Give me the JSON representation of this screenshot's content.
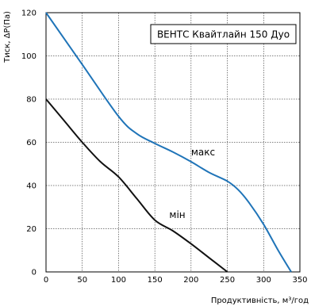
{
  "chart_data": {
    "type": "line",
    "title": "",
    "legend_box": "ВЕНТС Квайтлайн 150 Дуо",
    "legend_placement": "top-right",
    "xlabel": "Продуктивність, м³/год",
    "ylabel": "Тиск, ΔP(Па)",
    "xlim": [
      0,
      350
    ],
    "ylim": [
      0,
      120
    ],
    "xticks": [
      0,
      50,
      100,
      150,
      200,
      250,
      300,
      350
    ],
    "yticks": [
      0,
      20,
      40,
      60,
      80,
      100,
      120
    ],
    "grid": true,
    "series": [
      {
        "name": "макс",
        "color": "#1f74b8",
        "points": [
          [
            0,
            120
          ],
          [
            50,
            96
          ],
          [
            100,
            72
          ],
          [
            125,
            64
          ],
          [
            150,
            59.5
          ],
          [
            175,
            55.5
          ],
          [
            200,
            51
          ],
          [
            225,
            46
          ],
          [
            250,
            42
          ],
          [
            265,
            38
          ],
          [
            280,
            32
          ],
          [
            300,
            22
          ],
          [
            320,
            10
          ],
          [
            338,
            0
          ]
        ]
      },
      {
        "name": "мін",
        "color": "#111111",
        "points": [
          [
            0,
            80
          ],
          [
            25,
            70
          ],
          [
            50,
            60
          ],
          [
            75,
            51
          ],
          [
            100,
            44
          ],
          [
            125,
            34
          ],
          [
            150,
            24
          ],
          [
            175,
            19
          ],
          [
            200,
            13
          ],
          [
            225,
            6.5
          ],
          [
            250,
            0
          ]
        ]
      }
    ],
    "series_label_pos": [
      [
        200,
        54
      ],
      [
        170,
        25
      ]
    ]
  }
}
